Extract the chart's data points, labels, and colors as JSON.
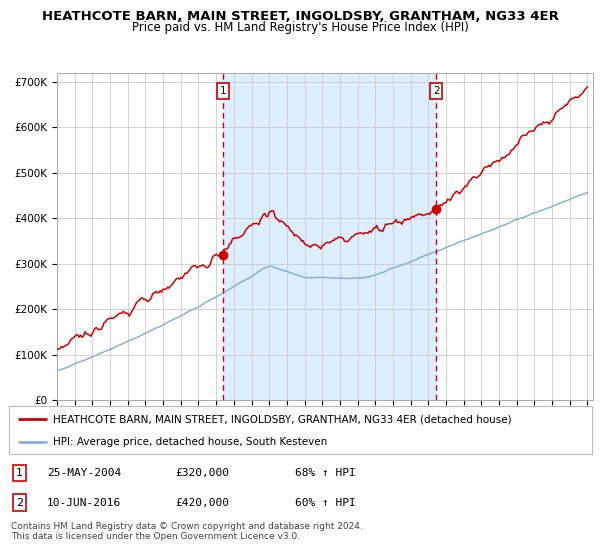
{
  "title": "HEATHCOTE BARN, MAIN STREET, INGOLDSBY, GRANTHAM, NG33 4ER",
  "subtitle": "Price paid vs. HM Land Registry's House Price Index (HPI)",
  "ylim": [
    0,
    700000
  ],
  "yticks": [
    0,
    100000,
    200000,
    300000,
    400000,
    500000,
    600000,
    700000
  ],
  "ytick_labels": [
    "£0",
    "£100K",
    "£200K",
    "£300K",
    "£400K",
    "£500K",
    "£600K",
    "£700K"
  ],
  "sale1_year": 2004.38,
  "sale1_value": 320000,
  "sale1_label": "1",
  "sale1_date": "25-MAY-2004",
  "sale1_price_str": "£320,000",
  "sale1_hpi": "68% ↑ HPI",
  "sale2_year": 2016.44,
  "sale2_value": 420000,
  "sale2_label": "2",
  "sale2_date": "10-JUN-2016",
  "sale2_price_str": "£420,000",
  "sale2_hpi": "60% ↑ HPI",
  "line1_color": "#cc0000",
  "line2_color": "#8ab0d8",
  "plot_bg": "#ffffff",
  "grid_color": "#cccccc",
  "shade_color": "#ddeeff",
  "legend1_label": "HEATHCOTE BARN, MAIN STREET, INGOLDSBY, GRANTHAM, NG33 4ER (detached house)",
  "legend2_label": "HPI: Average price, detached house, South Kesteven",
  "footer": "Contains HM Land Registry data © Crown copyright and database right 2024.\nThis data is licensed under the Open Government Licence v3.0.",
  "title_fontsize": 9.5,
  "subtitle_fontsize": 8.5,
  "legend_fontsize": 7.5,
  "info_fontsize": 8.0,
  "footer_fontsize": 6.5
}
